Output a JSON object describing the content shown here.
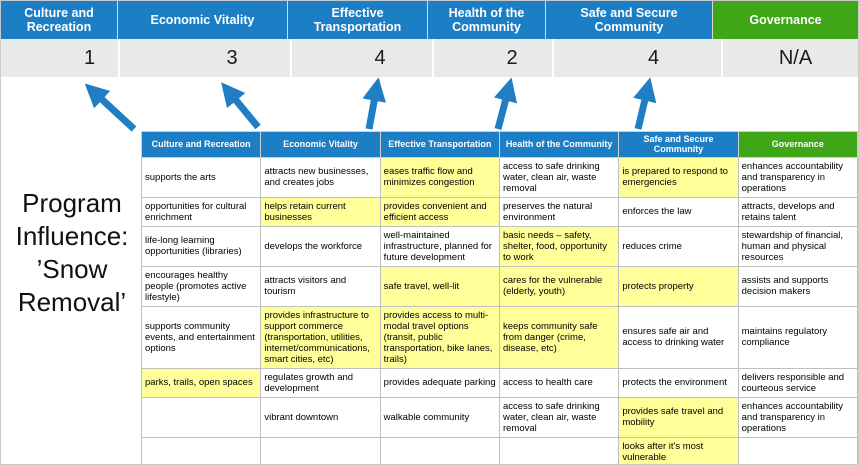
{
  "program_label": "Program Influence: ’Snow Removal’",
  "colors": {
    "blue": "#1C7EC5",
    "green": "#3FA617",
    "highlight": "#FFFF99",
    "score_band": "#E9E9E9",
    "arrow": "#1F7EC4"
  },
  "banner": {
    "categories": [
      {
        "label": "Culture and Recreation",
        "score": "1",
        "color": "#1C7EC5"
      },
      {
        "label": "Economic Vitality",
        "score": "3",
        "color": "#1C7EC5"
      },
      {
        "label": "Effective Transportation",
        "score": "4",
        "color": "#1C7EC5"
      },
      {
        "label": "Health of the Community",
        "score": "2",
        "color": "#1C7EC5"
      },
      {
        "label": "Safe and Secure Community",
        "score": "4",
        "color": "#1C7EC5"
      },
      {
        "label": "Governance",
        "score": "N/A",
        "color": "#3FA617"
      }
    ]
  },
  "matrix": {
    "headers": [
      {
        "label": "Culture and Recreation",
        "color": "#1C7EC5"
      },
      {
        "label": "Economic Vitality",
        "color": "#1C7EC5"
      },
      {
        "label": "Effective Transportation",
        "color": "#1C7EC5"
      },
      {
        "label": "Health of the Community",
        "color": "#1C7EC5"
      },
      {
        "label": "Safe and Secure Community",
        "color": "#1C7EC5"
      },
      {
        "label": "Governance",
        "color": "#3FA617"
      }
    ],
    "rows": [
      [
        {
          "text": "supports the arts",
          "highlight": false
        },
        {
          "text": "attracts new businesses, and creates jobs",
          "highlight": false
        },
        {
          "text": "eases traffic flow and minimizes congestion",
          "highlight": true
        },
        {
          "text": "access to safe drinking water, clean air, waste removal",
          "highlight": false
        },
        {
          "text": "is prepared to respond to emergencies",
          "highlight": true
        },
        {
          "text": "enhances accountability and transparency in operations",
          "highlight": false
        }
      ],
      [
        {
          "text": "opportunities for cultural enrichment",
          "highlight": false
        },
        {
          "text": "helps retain current businesses",
          "highlight": true
        },
        {
          "text": "provides convenient and efficient access",
          "highlight": true
        },
        {
          "text": "preserves the natural environment",
          "highlight": false
        },
        {
          "text": "enforces the law",
          "highlight": false
        },
        {
          "text": "attracts, develops and retains talent",
          "highlight": false
        }
      ],
      [
        {
          "text": "life-long learning opportunities (libraries)",
          "highlight": false
        },
        {
          "text": "develops the workforce",
          "highlight": false
        },
        {
          "text": "well-maintained infrastructure, planned for future development",
          "highlight": false
        },
        {
          "text": "basic needs – safety, shelter, food, opportunity to work",
          "highlight": true
        },
        {
          "text": "reduces crime",
          "highlight": false
        },
        {
          "text": "stewardship of financial, human and physical resources",
          "highlight": false
        }
      ],
      [
        {
          "text": "encourages healthy people (promotes active lifestyle)",
          "highlight": false
        },
        {
          "text": "attracts visitors and tourism",
          "highlight": false
        },
        {
          "text": "safe travel, well-lit",
          "highlight": true
        },
        {
          "text": "cares for the vulnerable (elderly, youth)",
          "highlight": true
        },
        {
          "text": "protects property",
          "highlight": true
        },
        {
          "text": "assists and supports decision makers",
          "highlight": false
        }
      ],
      [
        {
          "text": "supports community events, and entertainment options",
          "highlight": false
        },
        {
          "text": "provides infrastructure to support commerce (transportation, utilities, internet/communications, smart cities, etc)",
          "highlight": true
        },
        {
          "text": "provides access to multi-modal travel options (transit, public transportation, bike lanes, trails)",
          "highlight": true
        },
        {
          "text": "keeps community safe from danger (crime, disease, etc)",
          "highlight": true
        },
        {
          "text": "ensures safe air and access to drinking water",
          "highlight": false
        },
        {
          "text": "maintains regulatory compliance",
          "highlight": false
        }
      ],
      [
        {
          "text": "parks, trails, open spaces",
          "highlight": true
        },
        {
          "text": "regulates growth and development",
          "highlight": false
        },
        {
          "text": "provides adequate parking",
          "highlight": false
        },
        {
          "text": "access to health care",
          "highlight": false
        },
        {
          "text": "protects the environment",
          "highlight": false
        },
        {
          "text": "delivers responsible and courteous service",
          "highlight": false
        }
      ],
      [
        {
          "text": "",
          "highlight": false
        },
        {
          "text": "vibrant downtown",
          "highlight": false
        },
        {
          "text": "walkable community",
          "highlight": false
        },
        {
          "text": "access to safe drinking water, clean air, waste removal",
          "highlight": false
        },
        {
          "text": "provides safe travel and mobility",
          "highlight": true
        },
        {
          "text": "enhances accountability and transparency in operations",
          "highlight": false
        }
      ],
      [
        {
          "text": "",
          "highlight": false
        },
        {
          "text": "",
          "highlight": false
        },
        {
          "text": "",
          "highlight": false
        },
        {
          "text": "",
          "highlight": false
        },
        {
          "text": "looks after it's most vulnerable",
          "highlight": true
        },
        {
          "text": "",
          "highlight": false
        }
      ]
    ]
  }
}
